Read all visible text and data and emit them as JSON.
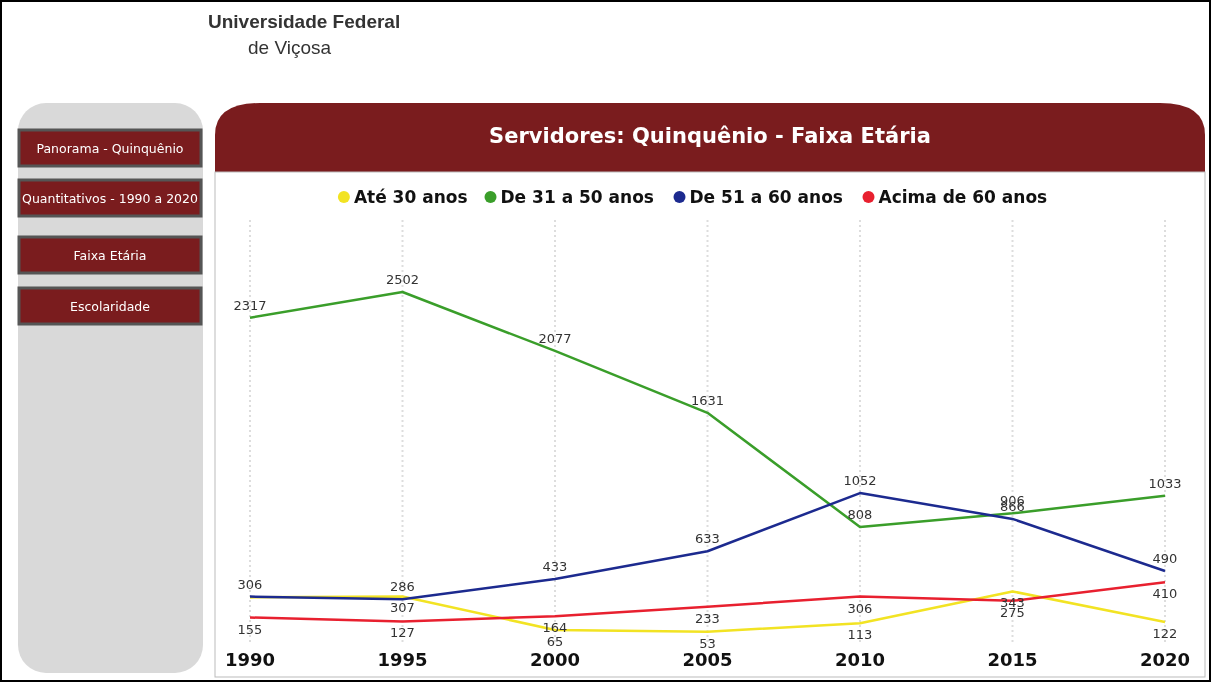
{
  "chart_data": {
    "type": "line",
    "title": "Servidores: Quinquênio - Faixa Etária",
    "x": [
      1990,
      1995,
      2000,
      2005,
      2010,
      2015,
      2020
    ],
    "xlim": [
      1990,
      2020
    ],
    "xticks": [
      1990,
      1995,
      2000,
      2005,
      2010,
      2015,
      2020
    ],
    "grid": "x",
    "legend": "top",
    "marker": "none",
    "tick_labels": "x",
    "series": [
      {
        "name": "Até 30 anos",
        "color": "#f2e323",
        "values": [
          300,
          307,
          65,
          53,
          113,
          343,
          122
        ],
        "value_labels": [
          null,
          "307",
          "65",
          "53",
          "113",
          "343",
          "122"
        ]
      },
      {
        "name": "De 31 a 50 anos",
        "color": "#3a9e2a",
        "values": [
          2317,
          2502,
          2077,
          1631,
          808,
          906,
          1033
        ],
        "value_labels": [
          "2317",
          "2502",
          "2077",
          "1631",
          "808",
          "906",
          "1033"
        ]
      },
      {
        "name": "De 51 a 60 anos",
        "color": "#1c2a8f",
        "values": [
          306,
          286,
          433,
          633,
          1052,
          866,
          490
        ],
        "value_labels": [
          "306",
          "286",
          "433",
          "633",
          "1052",
          "866",
          "490"
        ]
      },
      {
        "name": "Acima de 60 anos",
        "color": "#e8202f",
        "values": [
          155,
          127,
          164,
          233,
          306,
          275,
          410
        ],
        "value_labels": [
          "155",
          "127",
          "164",
          "233",
          "306",
          "275",
          "410"
        ]
      }
    ],
    "annotations": [
      "Universidade Federal",
      "de Viçosa",
      "Panorama - Quinquênio",
      "Quantitativos - 1990 a 2020",
      "Faixa Etária",
      "Escolaridade"
    ]
  }
}
